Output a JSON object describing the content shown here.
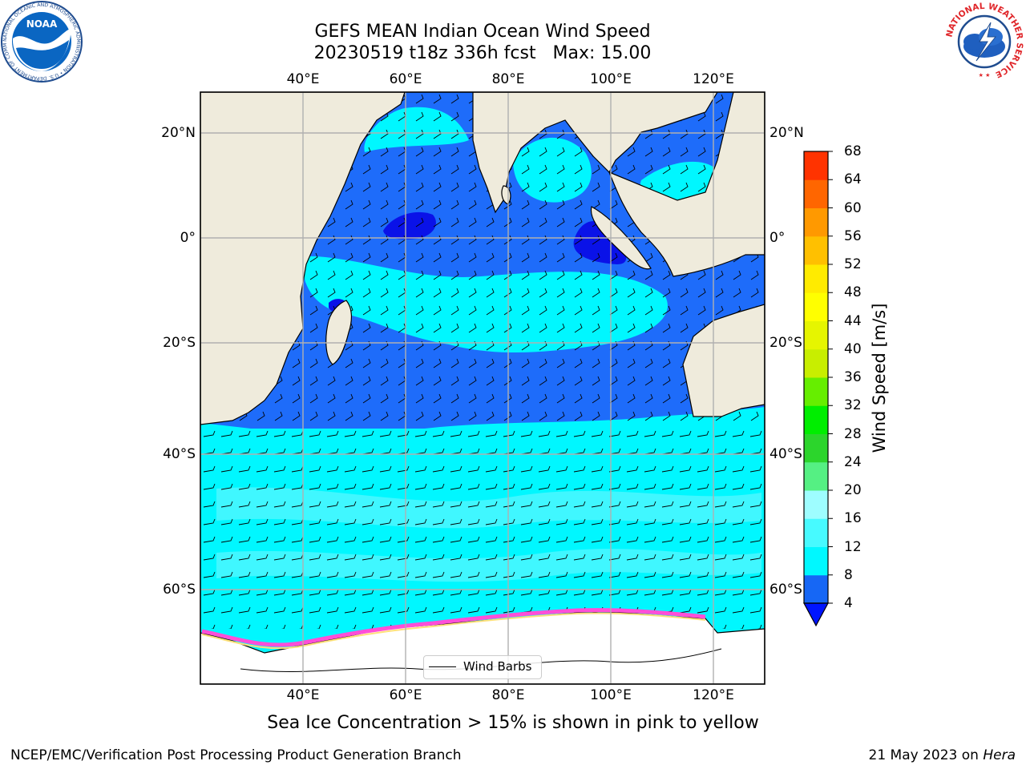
{
  "title": {
    "line1": "GEFS MEAN Indian Ocean Wind Speed",
    "line2": "20230519 t18z 336h fcst   Max: 15.00"
  },
  "map": {
    "projection": "lat-lon",
    "lon_range": [
      20,
      130
    ],
    "lat_range": [
      -75,
      28
    ],
    "lon_ticks": [
      "40°E",
      "60°E",
      "80°E",
      "100°E",
      "120°E"
    ],
    "lat_ticks": [
      "20°N",
      "0°",
      "20°S",
      "40°S",
      "60°S"
    ],
    "gridlines": true,
    "colors": {
      "land": "#efebdc",
      "ice": "#ffffff",
      "speed_4_8": "#1e6cfa",
      "speed_8_12": "#00f7ff",
      "speed_12_16": "#47f6ff",
      "weak_core": "#0a12e8",
      "sea_ice_edge": "#ff4fd8"
    },
    "legend_label": "Wind Barbs"
  },
  "colorbar": {
    "label": "Wind Speed [m/s]",
    "ticks": [
      "4",
      "8",
      "12",
      "16",
      "20",
      "24",
      "28",
      "32",
      "36",
      "40",
      "44",
      "48",
      "52",
      "56",
      "60",
      "64",
      "68"
    ],
    "colors": [
      "#1667f5",
      "#00f8ff",
      "#47faff",
      "#9efdff",
      "#55f083",
      "#2cd52c",
      "#00ee00",
      "#66ee00",
      "#c8ee00",
      "#e6f500",
      "#ffff00",
      "#ffeb00",
      "#ffc000",
      "#ff9900",
      "#ff6600",
      "#ff3300",
      "#ff0000"
    ],
    "under_color": "#0015ff"
  },
  "caption": "Sea Ice Concentration > 15% is shown in pink to yellow",
  "footer": {
    "left": "NCEP/EMC/Verification Post Processing Product Generation Branch",
    "right_prefix": "21 May 2023 on ",
    "right_host": "Hera"
  },
  "logos": {
    "left": {
      "text": "NOAA",
      "ring": "NATIONAL OCEANIC AND ATMOSPHERIC ADMINISTRATION • U.S. DEPARTMENT OF COMMERCE"
    },
    "right": {
      "ring": "NATIONAL WEATHER SERVICE"
    }
  }
}
